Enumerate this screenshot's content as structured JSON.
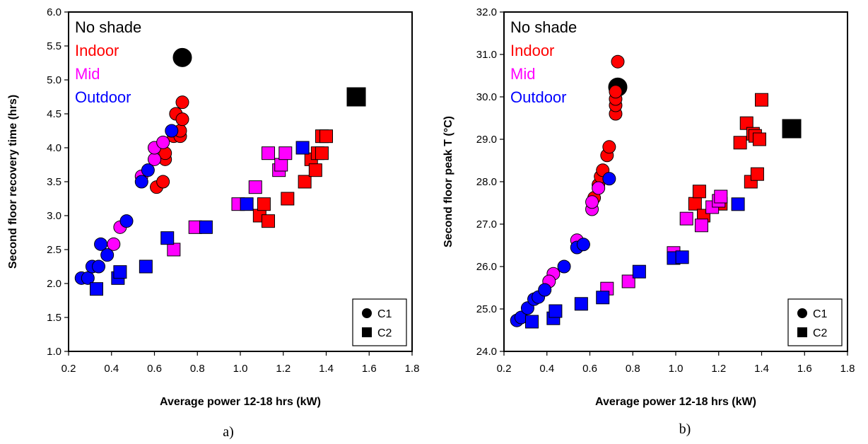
{
  "colors": {
    "No shade": "#000000",
    "Indoor": "#ff0000",
    "Mid": "#ff00ff",
    "Outdoor": "#0000ff"
  },
  "chart_data": [
    {
      "type": "scatter",
      "caption": "a)",
      "xlabel": "Average power 12-18 hrs (kW)",
      "ylabel": "Second floor recovery time (hrs)",
      "xlim": [
        0.2,
        1.8
      ],
      "ylim": [
        1.0,
        6.0
      ],
      "xticks": [
        "0.2",
        "0.4",
        "0.6",
        "0.8",
        "1.0",
        "1.2",
        "1.4",
        "1.6",
        "1.8"
      ],
      "yticks": [
        "1.0",
        "1.5",
        "2.0",
        "2.5",
        "3.0",
        "3.5",
        "4.0",
        "4.5",
        "5.0",
        "5.5",
        "6.0"
      ],
      "annotations": [
        "No shade",
        "Indoor",
        "Mid",
        "Outdoor"
      ],
      "legend": {
        "position": "bottom-right",
        "entries": [
          {
            "label": "C1",
            "marker": "circle"
          },
          {
            "label": "C2",
            "marker": "square"
          }
        ]
      },
      "series": [
        {
          "group": "No shade",
          "marker": "circle",
          "size": "large",
          "points": [
            [
              0.73,
              5.33
            ]
          ]
        },
        {
          "group": "No shade",
          "marker": "square",
          "size": "large",
          "points": [
            [
              1.54,
              4.75
            ]
          ]
        },
        {
          "group": "Indoor",
          "marker": "circle",
          "points": [
            [
              0.61,
              3.42
            ],
            [
              0.64,
              3.5
            ],
            [
              0.65,
              3.83
            ],
            [
              0.65,
              3.92
            ],
            [
              0.69,
              4.17
            ],
            [
              0.7,
              4.5
            ],
            [
              0.72,
              4.17
            ],
            [
              0.72,
              4.25
            ],
            [
              0.73,
              4.42
            ],
            [
              0.73,
              4.67
            ]
          ]
        },
        {
          "group": "Mid",
          "marker": "circle",
          "points": [
            [
              0.44,
              2.83
            ],
            [
              0.41,
              2.58
            ],
            [
              0.54,
              3.58
            ],
            [
              0.6,
              3.83
            ],
            [
              0.6,
              4.0
            ],
            [
              0.64,
              4.08
            ]
          ]
        },
        {
          "group": "Outdoor",
          "marker": "circle",
          "points": [
            [
              0.26,
              2.08
            ],
            [
              0.29,
              2.08
            ],
            [
              0.31,
              2.25
            ],
            [
              0.34,
              2.25
            ],
            [
              0.35,
              2.58
            ],
            [
              0.38,
              2.42
            ],
            [
              0.47,
              2.92
            ],
            [
              0.54,
              3.5
            ],
            [
              0.57,
              3.67
            ],
            [
              0.68,
              4.25
            ]
          ]
        },
        {
          "group": "Indoor",
          "marker": "square",
          "points": [
            [
              1.09,
              3.0
            ],
            [
              1.11,
              3.17
            ],
            [
              1.13,
              2.92
            ],
            [
              1.22,
              3.25
            ],
            [
              1.3,
              3.5
            ],
            [
              1.33,
              3.83
            ],
            [
              1.35,
              3.67
            ],
            [
              1.36,
              3.92
            ],
            [
              1.38,
              3.92
            ],
            [
              1.38,
              4.17
            ],
            [
              1.4,
              4.17
            ]
          ]
        },
        {
          "group": "Mid",
          "marker": "square",
          "points": [
            [
              0.69,
              2.5
            ],
            [
              0.79,
              2.83
            ],
            [
              0.99,
              3.17
            ],
            [
              1.07,
              3.42
            ],
            [
              1.13,
              3.92
            ],
            [
              1.18,
              3.67
            ],
            [
              1.19,
              3.75
            ],
            [
              1.21,
              3.92
            ]
          ]
        },
        {
          "group": "Outdoor",
          "marker": "square",
          "points": [
            [
              0.33,
              1.92
            ],
            [
              0.43,
              2.08
            ],
            [
              0.44,
              2.17
            ],
            [
              0.56,
              2.25
            ],
            [
              0.66,
              2.67
            ],
            [
              0.84,
              2.83
            ],
            [
              1.03,
              3.17
            ],
            [
              1.29,
              4.0
            ]
          ]
        }
      ]
    },
    {
      "type": "scatter",
      "caption": "b)",
      "xlabel": "Average power 12-18 hrs (kW)",
      "ylabel": "Second floor peak T (°C)",
      "xlim": [
        0.2,
        1.8
      ],
      "ylim": [
        24.0,
        32.0
      ],
      "xticks": [
        "0.2",
        "0.4",
        "0.6",
        "0.8",
        "1.0",
        "1.2",
        "1.4",
        "1.6",
        "1.8"
      ],
      "yticks": [
        "24.0",
        "25.0",
        "26.0",
        "27.0",
        "28.0",
        "29.0",
        "30.0",
        "31.0",
        "32.0"
      ],
      "annotations": [
        "No shade",
        "Indoor",
        "Mid",
        "Outdoor"
      ],
      "legend": {
        "position": "bottom-right",
        "entries": [
          {
            "label": "C1",
            "marker": "circle"
          },
          {
            "label": "C2",
            "marker": "square"
          }
        ]
      },
      "series": [
        {
          "group": "No shade",
          "marker": "circle",
          "size": "large",
          "points": [
            [
              0.73,
              30.23
            ]
          ]
        },
        {
          "group": "No shade",
          "marker": "square",
          "size": "large",
          "points": [
            [
              1.54,
              29.25
            ]
          ]
        },
        {
          "group": "Indoor",
          "marker": "circle",
          "points": [
            [
              0.62,
              27.62
            ],
            [
              0.64,
              27.93
            ],
            [
              0.65,
              28.12
            ],
            [
              0.66,
              28.27
            ],
            [
              0.68,
              28.62
            ],
            [
              0.69,
              28.82
            ],
            [
              0.72,
              29.6
            ],
            [
              0.72,
              29.8
            ],
            [
              0.72,
              29.95
            ],
            [
              0.72,
              30.12
            ],
            [
              0.73,
              30.83
            ]
          ]
        },
        {
          "group": "Mid",
          "marker": "circle",
          "points": [
            [
              0.43,
              25.83
            ],
            [
              0.41,
              25.65
            ],
            [
              0.54,
              26.62
            ],
            [
              0.61,
              27.35
            ],
            [
              0.61,
              27.52
            ],
            [
              0.64,
              27.85
            ]
          ]
        },
        {
          "group": "Outdoor",
          "marker": "circle",
          "points": [
            [
              0.26,
              24.73
            ],
            [
              0.28,
              24.8
            ],
            [
              0.31,
              25.02
            ],
            [
              0.34,
              25.23
            ],
            [
              0.36,
              25.28
            ],
            [
              0.39,
              25.45
            ],
            [
              0.48,
              26.0
            ],
            [
              0.54,
              26.45
            ],
            [
              0.57,
              26.52
            ],
            [
              0.69,
              28.07
            ]
          ]
        },
        {
          "group": "Indoor",
          "marker": "square",
          "points": [
            [
              1.09,
              27.48
            ],
            [
              1.11,
              27.77
            ],
            [
              1.13,
              27.2
            ],
            [
              1.21,
              27.48
            ],
            [
              1.3,
              28.92
            ],
            [
              1.33,
              29.38
            ],
            [
              1.35,
              28.0
            ],
            [
              1.36,
              29.13
            ],
            [
              1.37,
              29.08
            ],
            [
              1.38,
              28.18
            ],
            [
              1.39,
              29.0
            ],
            [
              1.4,
              29.93
            ]
          ]
        },
        {
          "group": "Mid",
          "marker": "square",
          "points": [
            [
              0.68,
              25.48
            ],
            [
              0.78,
              25.65
            ],
            [
              0.99,
              26.32
            ],
            [
              1.05,
              27.13
            ],
            [
              1.12,
              26.97
            ],
            [
              1.17,
              27.4
            ],
            [
              1.2,
              27.55
            ],
            [
              1.21,
              27.65
            ]
          ]
        },
        {
          "group": "Outdoor",
          "marker": "square",
          "points": [
            [
              0.33,
              24.7
            ],
            [
              0.43,
              24.78
            ],
            [
              0.44,
              24.95
            ],
            [
              0.56,
              25.12
            ],
            [
              0.66,
              25.27
            ],
            [
              0.83,
              25.88
            ],
            [
              0.99,
              26.2
            ],
            [
              1.03,
              26.22
            ],
            [
              1.29,
              27.47
            ]
          ]
        }
      ]
    }
  ]
}
